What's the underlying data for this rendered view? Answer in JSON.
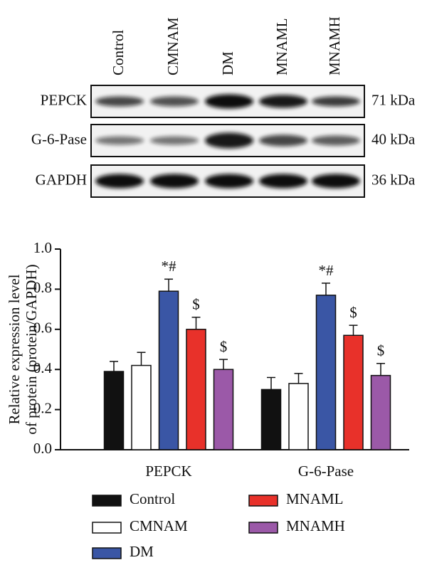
{
  "blot": {
    "lanes": [
      "Control",
      "CMNAM",
      "DM",
      "MNAML",
      "MNAMH"
    ],
    "rows": [
      {
        "protein": "PEPCK",
        "size": "71 kDa"
      },
      {
        "protein": "G-6-Pase",
        "size": "40 kDa"
      },
      {
        "protein": "GAPDH",
        "size": "36 kDa"
      }
    ]
  },
  "chart_data": {
    "type": "bar",
    "ylabel": [
      "Relative expression level",
      "of protein (protein/GAPDH)"
    ],
    "categories": [
      "PEPCK",
      "G-6-Pase"
    ],
    "series": [
      {
        "name": "Control",
        "color": "#111111",
        "values": [
          0.39,
          0.3
        ],
        "errors": [
          0.05,
          0.06
        ]
      },
      {
        "name": "CMNAM",
        "color": "#ffffff",
        "values": [
          0.42,
          0.33
        ],
        "errors": [
          0.065,
          0.05
        ]
      },
      {
        "name": "DM",
        "color": "#3a56a5",
        "values": [
          0.79,
          0.77
        ],
        "errors": [
          0.06,
          0.06
        ],
        "annotations": [
          "*#",
          "*#"
        ]
      },
      {
        "name": "MNAML",
        "color": "#e8312a",
        "values": [
          0.6,
          0.57
        ],
        "errors": [
          0.06,
          0.05
        ],
        "annotations": [
          "$",
          "$"
        ]
      },
      {
        "name": "MNAMH",
        "color": "#9b59a8",
        "values": [
          0.4,
          0.37
        ],
        "errors": [
          0.05,
          0.06
        ],
        "annotations": [
          "$",
          "$"
        ]
      }
    ],
    "ylim": [
      0,
      1.0
    ],
    "yticks": [
      {
        "value": 0,
        "label": "0.0"
      },
      0.2,
      0.4,
      0.6,
      0.8,
      {
        "value": 1.0,
        "label": "1.0"
      }
    ]
  }
}
